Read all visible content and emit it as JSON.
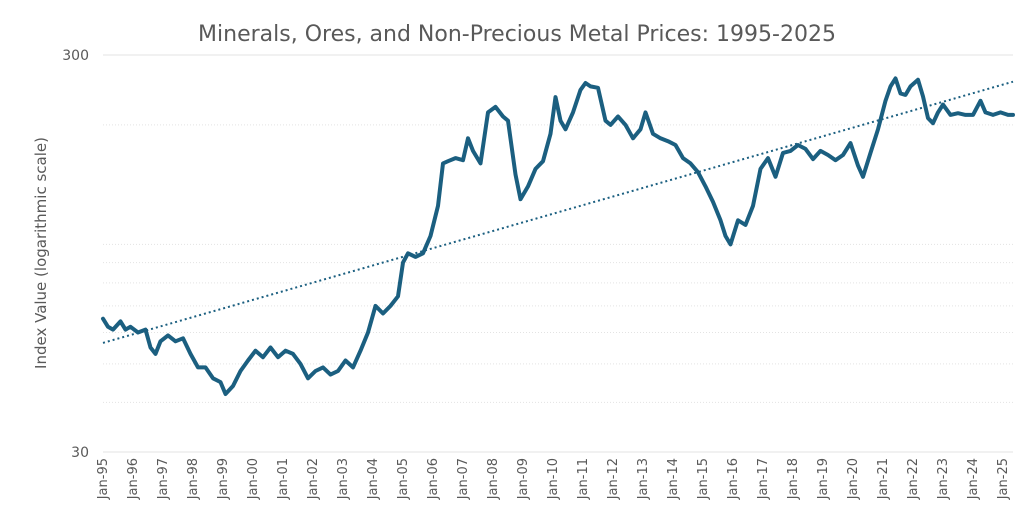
{
  "chart_data": {
    "type": "line",
    "title": "Minerals, Ores, and Non-Precious Metal Prices: 1995-2025",
    "xlabel": "",
    "ylabel": "Index Value (logarithmic scale)",
    "y_scale": "log",
    "ylim": [
      30,
      300
    ],
    "y_ticks": [
      "30",
      "300"
    ],
    "minor_gridlines": [
      40,
      50,
      60,
      70,
      80,
      90,
      100,
      200
    ],
    "x_tick_labels": [
      "Jan-95",
      "Jan-96",
      "Jan-97",
      "Jan-98",
      "Jan-99",
      "Jan-00",
      "Jan-01",
      "Jan-02",
      "Jan-03",
      "Jan-04",
      "Jan-05",
      "Jan-06",
      "Jan-07",
      "Jan-08",
      "Jan-09",
      "Jan-10",
      "Jan-11",
      "Jan-12",
      "Jan-13",
      "Jan-14",
      "Jan-15",
      "Jan-16",
      "Jan-17",
      "Jan-18",
      "Jan-19",
      "Jan-20",
      "Jan-21",
      "Jan-22",
      "Jan-23",
      "Jan-24",
      "Jan-25"
    ],
    "xlim": [
      "1995-01",
      "2025-05"
    ],
    "colors": {
      "series": "#1b5f80",
      "grid": "#e3e3e3",
      "text": "#595959"
    },
    "series": [
      {
        "style": "solid",
        "points": [
          [
            "1995-01",
            65
          ],
          [
            "1995-03",
            62
          ],
          [
            "1995-05",
            61
          ],
          [
            "1995-08",
            64
          ],
          [
            "1995-10",
            61
          ],
          [
            "1995-12",
            62
          ],
          [
            "1996-03",
            60
          ],
          [
            "1996-06",
            61
          ],
          [
            "1996-08",
            55
          ],
          [
            "1996-10",
            53
          ],
          [
            "1996-12",
            57
          ],
          [
            "1997-03",
            59
          ],
          [
            "1997-06",
            57
          ],
          [
            "1997-09",
            58
          ],
          [
            "1997-12",
            53
          ],
          [
            "1998-03",
            49
          ],
          [
            "1998-06",
            49
          ],
          [
            "1998-09",
            46
          ],
          [
            "1998-12",
            45
          ],
          [
            "1999-02",
            42
          ],
          [
            "1999-05",
            44
          ],
          [
            "1999-08",
            48
          ],
          [
            "1999-11",
            51
          ],
          [
            "2000-02",
            54
          ],
          [
            "2000-05",
            52
          ],
          [
            "2000-08",
            55
          ],
          [
            "2000-11",
            52
          ],
          [
            "2001-02",
            54
          ],
          [
            "2001-05",
            53
          ],
          [
            "2001-08",
            50
          ],
          [
            "2001-11",
            46
          ],
          [
            "2002-02",
            48
          ],
          [
            "2002-05",
            49
          ],
          [
            "2002-08",
            47
          ],
          [
            "2002-11",
            48
          ],
          [
            "2003-02",
            51
          ],
          [
            "2003-05",
            49
          ],
          [
            "2003-08",
            54
          ],
          [
            "2003-11",
            60
          ],
          [
            "2004-02",
            70
          ],
          [
            "2004-05",
            67
          ],
          [
            "2004-08",
            70
          ],
          [
            "2004-11",
            74
          ],
          [
            "2005-01",
            90
          ],
          [
            "2005-03",
            95
          ],
          [
            "2005-06",
            93
          ],
          [
            "2005-09",
            95
          ],
          [
            "2005-12",
            105
          ],
          [
            "2006-03",
            125
          ],
          [
            "2006-05",
            160
          ],
          [
            "2006-07",
            162
          ],
          [
            "2006-10",
            165
          ],
          [
            "2007-01",
            163
          ],
          [
            "2007-03",
            185
          ],
          [
            "2007-05",
            172
          ],
          [
            "2007-08",
            160
          ],
          [
            "2007-11",
            215
          ],
          [
            "2008-02",
            222
          ],
          [
            "2008-05",
            210
          ],
          [
            "2008-07",
            205
          ],
          [
            "2008-10",
            150
          ],
          [
            "2008-12",
            130
          ],
          [
            "2009-03",
            140
          ],
          [
            "2009-06",
            155
          ],
          [
            "2009-09",
            162
          ],
          [
            "2009-12",
            190
          ],
          [
            "2010-02",
            235
          ],
          [
            "2010-04",
            205
          ],
          [
            "2010-06",
            195
          ],
          [
            "2010-09",
            215
          ],
          [
            "2010-12",
            245
          ],
          [
            "2011-02",
            255
          ],
          [
            "2011-04",
            250
          ],
          [
            "2011-07",
            248
          ],
          [
            "2011-10",
            205
          ],
          [
            "2011-12",
            200
          ],
          [
            "2012-03",
            210
          ],
          [
            "2012-06",
            200
          ],
          [
            "2012-09",
            185
          ],
          [
            "2012-12",
            195
          ],
          [
            "2013-02",
            215
          ],
          [
            "2013-05",
            190
          ],
          [
            "2013-08",
            185
          ],
          [
            "2013-11",
            182
          ],
          [
            "2014-02",
            178
          ],
          [
            "2014-05",
            165
          ],
          [
            "2014-08",
            160
          ],
          [
            "2014-11",
            152
          ],
          [
            "2015-02",
            140
          ],
          [
            "2015-05",
            128
          ],
          [
            "2015-08",
            115
          ],
          [
            "2015-10",
            105
          ],
          [
            "2015-12",
            100
          ],
          [
            "2016-03",
            115
          ],
          [
            "2016-06",
            112
          ],
          [
            "2016-09",
            125
          ],
          [
            "2016-12",
            155
          ],
          [
            "2017-03",
            165
          ],
          [
            "2017-06",
            148
          ],
          [
            "2017-09",
            170
          ],
          [
            "2017-12",
            172
          ],
          [
            "2018-03",
            178
          ],
          [
            "2018-06",
            174
          ],
          [
            "2018-09",
            164
          ],
          [
            "2018-12",
            172
          ],
          [
            "2019-03",
            168
          ],
          [
            "2019-06",
            163
          ],
          [
            "2019-09",
            168
          ],
          [
            "2019-12",
            180
          ],
          [
            "2020-03",
            158
          ],
          [
            "2020-05",
            148
          ],
          [
            "2020-08",
            170
          ],
          [
            "2020-11",
            195
          ],
          [
            "2021-02",
            230
          ],
          [
            "2021-04",
            250
          ],
          [
            "2021-06",
            262
          ],
          [
            "2021-08",
            240
          ],
          [
            "2021-10",
            238
          ],
          [
            "2021-12",
            250
          ],
          [
            "2022-03",
            260
          ],
          [
            "2022-05",
            236
          ],
          [
            "2022-07",
            208
          ],
          [
            "2022-09",
            202
          ],
          [
            "2022-11",
            215
          ],
          [
            "2023-01",
            225
          ],
          [
            "2023-04",
            212
          ],
          [
            "2023-07",
            214
          ],
          [
            "2023-10",
            212
          ],
          [
            "2024-01",
            212
          ],
          [
            "2024-04",
            230
          ],
          [
            "2024-06",
            215
          ],
          [
            "2024-09",
            212
          ],
          [
            "2024-12",
            215
          ],
          [
            "2025-03",
            212
          ],
          [
            "2025-05",
            212
          ]
        ]
      },
      {
        "style": "dotted",
        "kind": "trendline",
        "points": [
          [
            "1995-01",
            56.5
          ],
          [
            "2025-05",
            257
          ]
        ]
      }
    ]
  }
}
